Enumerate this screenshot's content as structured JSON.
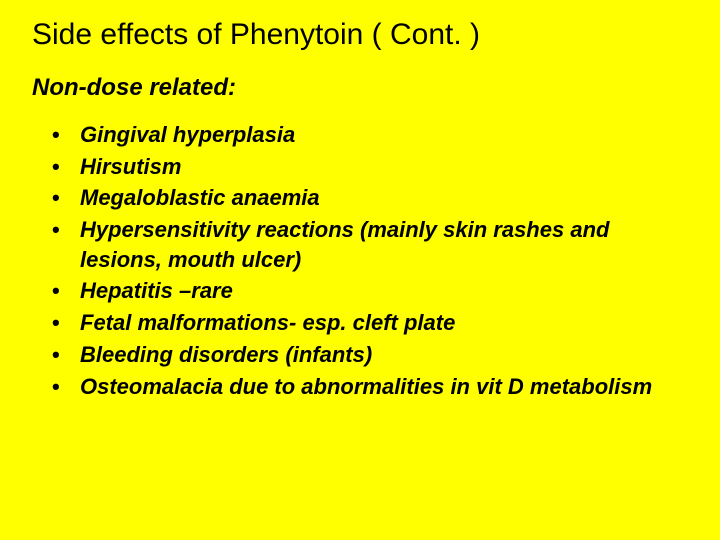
{
  "slide": {
    "background_color": "#ffff00",
    "text_color": "#000000",
    "title": "Side effects of Phenytoin ( Cont. )",
    "title_fontsize": 30,
    "subtitle": "Non-dose related:",
    "subtitle_fontsize": 24,
    "bullet_marker": "•",
    "bullet_fontsize": 22,
    "bullets": [
      "Gingival hyperplasia",
      "Hirsutism",
      "Megaloblastic anaemia",
      "Hypersensitivity reactions (mainly skin rashes and lesions, mouth ulcer)",
      "Hepatitis –rare",
      "Fetal malformations- esp. cleft plate",
      "Bleeding disorders (infants)",
      "Osteomalacia due to abnormalities in vit D metabolism"
    ]
  }
}
